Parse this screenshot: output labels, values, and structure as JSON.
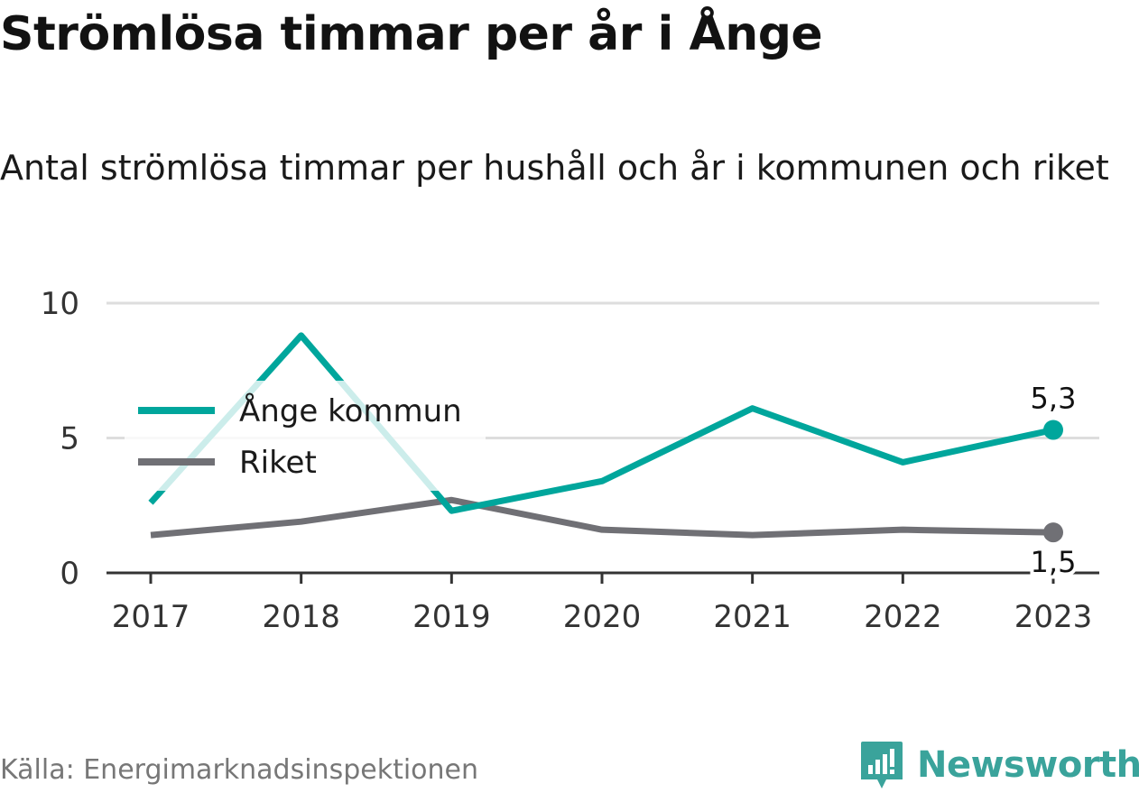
{
  "title": "Strömlösa timmar per år i Ånge",
  "subtitle": "Antal strömlösa timmar per hushåll och år i kommunen och riket",
  "source": "Källa: Energimarknadsinspektionen",
  "brand": {
    "name": "Newsworthy",
    "icon": "bar-chart-pin-icon"
  },
  "colors": {
    "ange": "#00a69c",
    "riket": "#707075",
    "grid": "#dddddd",
    "axis": "#333333"
  },
  "chart_data": {
    "type": "line",
    "x": [
      "2017",
      "2018",
      "2019",
      "2020",
      "2021",
      "2022",
      "2023"
    ],
    "ylim": [
      0,
      10
    ],
    "yticks": [
      "0",
      "5",
      "10"
    ],
    "grid": true,
    "legend_position": "left",
    "series": [
      {
        "name": "Ånge kommun",
        "values": [
          2.6,
          8.8,
          2.3,
          3.4,
          6.1,
          4.1,
          5.3
        ],
        "end_label": "5,3"
      },
      {
        "name": "Riket",
        "values": [
          1.4,
          1.9,
          2.7,
          1.6,
          1.4,
          1.6,
          1.5
        ],
        "end_label": "1,5"
      }
    ]
  }
}
